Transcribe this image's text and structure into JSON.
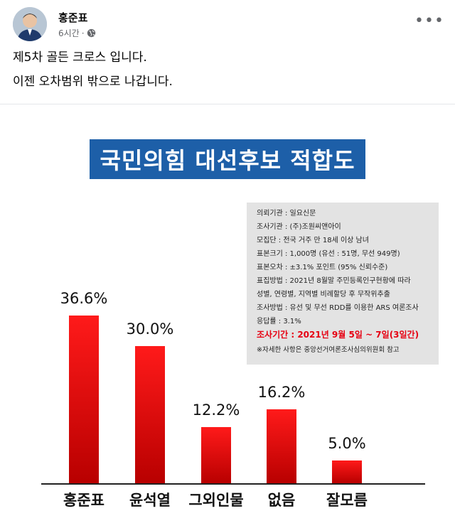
{
  "post": {
    "author": "홍준표",
    "time": "6시간",
    "separator": "·",
    "line1": "제5차 골든 크로스 입니다.",
    "line2": "이젠 오차범위 밖으로 나갑니다."
  },
  "chart_data": {
    "type": "bar",
    "title": "국민의힘 대선후보 적합도",
    "categories": [
      "홍준표",
      "윤석열",
      "그외인물",
      "없음",
      "잘모름"
    ],
    "values": [
      36.6,
      30.0,
      12.2,
      16.2,
      5.0
    ],
    "value_labels": [
      "36.6%",
      "30.0%",
      "12.2%",
      "16.2%",
      "5.0%"
    ],
    "bar_color": "#e60012",
    "ylim": [
      0,
      40
    ]
  },
  "survey_info": {
    "lines": [
      "의뢰기관 : 일요신문",
      "조사기관 : (주)조원씨앤아이",
      "모집단 : 전국 거주 만 18세 이상 남녀",
      "표본크기 : 1,000명 (유선 : 51명, 무선 949명)",
      "표본오차 : ±3.1% 포인트 (95% 신뢰수준)",
      "표집방법 : 2021년 8월말 주민등록인구현황에 따라",
      "성별, 연령별, 지역별 비례할당 후 무작위추출",
      "조사방법 : 유선 및 무선 RDD를 이용한 ARS 여론조사",
      "응답률 : 3.1%"
    ],
    "period": "조사기간 : 2021년 9월 5일 ~ 7일(3일간)",
    "note": "※자세한 사항은 중앙선거여론조사심의위원회 참고"
  },
  "colors": {
    "title_bg": "#1d5fa8",
    "period_text": "#e60012",
    "infobox_bg": "#e3e3e3"
  }
}
